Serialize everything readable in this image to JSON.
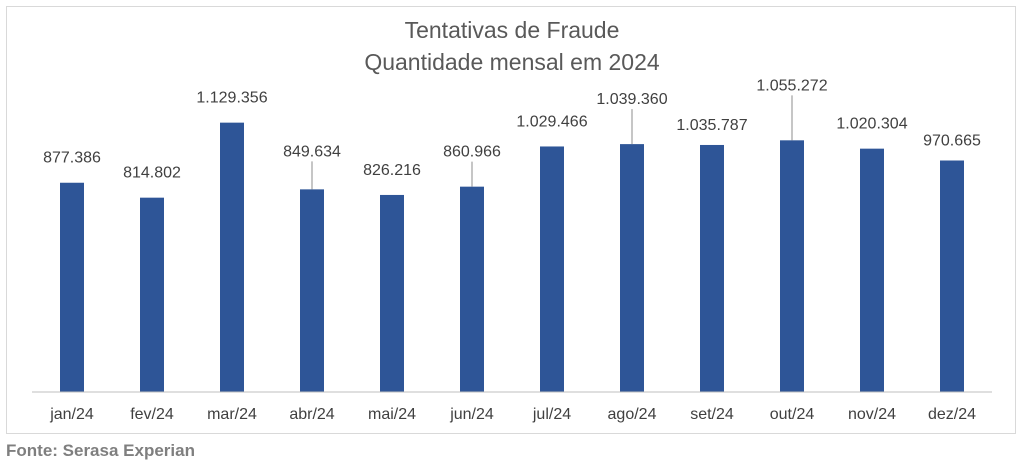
{
  "chart_data": {
    "type": "bar",
    "title": "Tentativas de Fraude",
    "subtitle": "Quantidade mensal em 2024",
    "categories": [
      "jan/24",
      "fev/24",
      "mar/24",
      "abr/24",
      "mai/24",
      "jun/24",
      "jul/24",
      "ago/24",
      "set/24",
      "out/24",
      "nov/24",
      "dez/24"
    ],
    "series": [
      {
        "values": [
          877386,
          814802,
          1129356,
          849634,
          826216,
          860966,
          1029466,
          1039360,
          1035787,
          1055272,
          1020304,
          970665
        ]
      }
    ],
    "value_labels": [
      "877.386",
      "814.802",
      "1.129.356",
      "849.634",
      "826.216",
      "860.966",
      "1.029.466",
      "1.039.360",
      "1.035.787",
      "1.055.272",
      "1.020.304",
      "970.665"
    ],
    "ylim": [
      0,
      1200000
    ],
    "grid": false,
    "bar_color": "#2e5597",
    "axis_color": "#bfbfbf"
  },
  "footer": {
    "source": "Fonte: Serasa Experian"
  }
}
